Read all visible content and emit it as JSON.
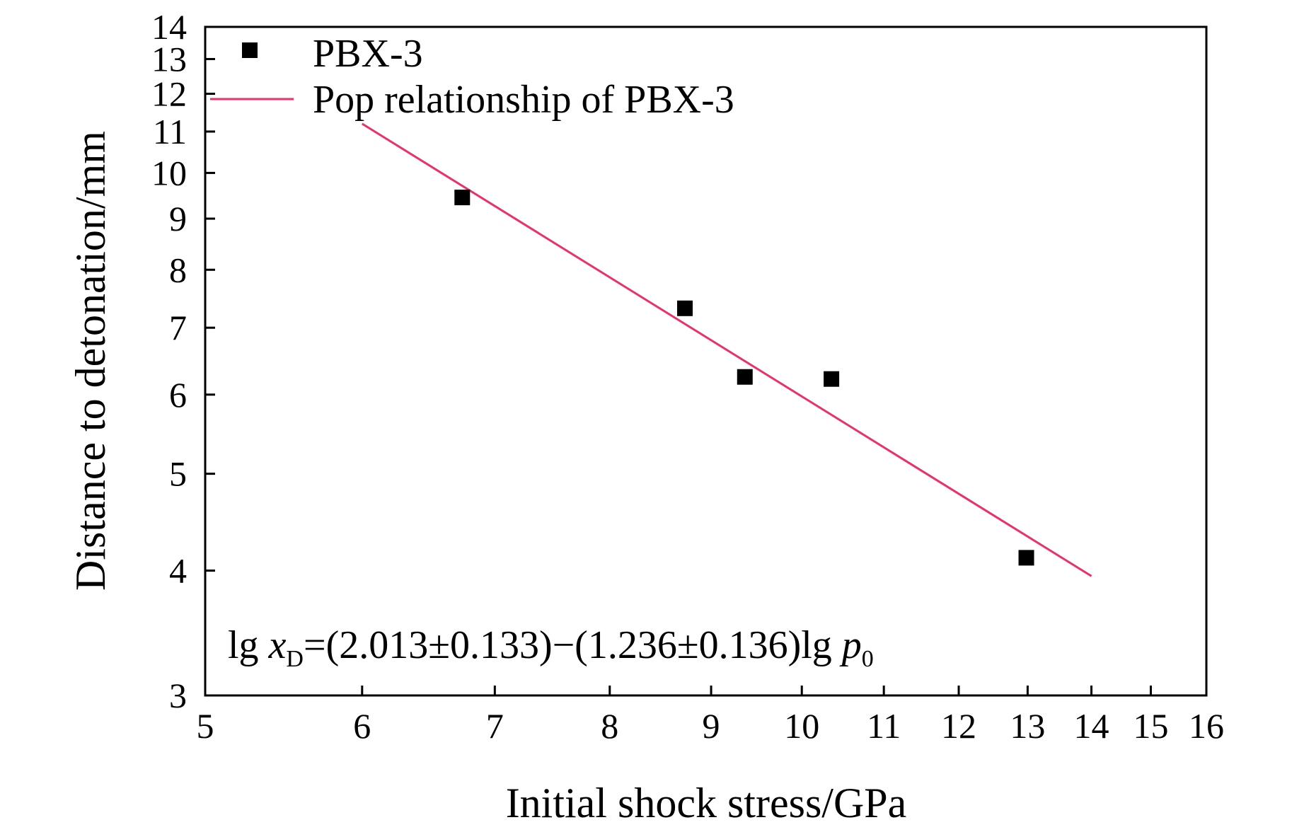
{
  "chart_data": {
    "type": "scatter",
    "x_scale": "log",
    "y_scale": "log",
    "xlabel": "Initial shock stress/GPa",
    "ylabel": "Distance to detonation/mm",
    "xlim": [
      5,
      16
    ],
    "ylim": [
      3,
      14
    ],
    "x_ticks": [
      5,
      6,
      7,
      8,
      9,
      10,
      11,
      12,
      13,
      14,
      15,
      16
    ],
    "y_ticks": [
      3,
      4,
      5,
      6,
      7,
      8,
      9,
      10,
      11,
      12,
      13,
      14
    ],
    "x_tick_labels": [
      "5",
      "6",
      "7",
      "8",
      "9",
      "10",
      "11",
      "12",
      "13",
      "14",
      "15",
      "16"
    ],
    "y_tick_labels": [
      "3",
      "4",
      "5",
      "6",
      "7",
      "8",
      "9",
      "10",
      "11",
      "12",
      "13",
      "14"
    ],
    "grid": false,
    "legend_position": "top-left",
    "series": [
      {
        "name": "PBX-3",
        "kind": "scatter",
        "marker": "square",
        "color": "#000000",
        "x": [
          6.74,
          8.73,
          9.36,
          10.35,
          12.98
        ],
        "y": [
          9.45,
          7.32,
          6.25,
          6.22,
          4.12
        ]
      },
      {
        "name": "Pop relationship of PBX-3",
        "kind": "line",
        "color": "#e8336a",
        "x": [
          6.0,
          14.0
        ],
        "y": [
          11.2,
          3.95
        ]
      }
    ],
    "annotation": {
      "prefix": "lg ",
      "var_x": "x",
      "sub_x": "D",
      "middle": "=(2.013±0.133)−(1.236±0.136)lg ",
      "var_p": "p",
      "sub_p": "0"
    }
  }
}
